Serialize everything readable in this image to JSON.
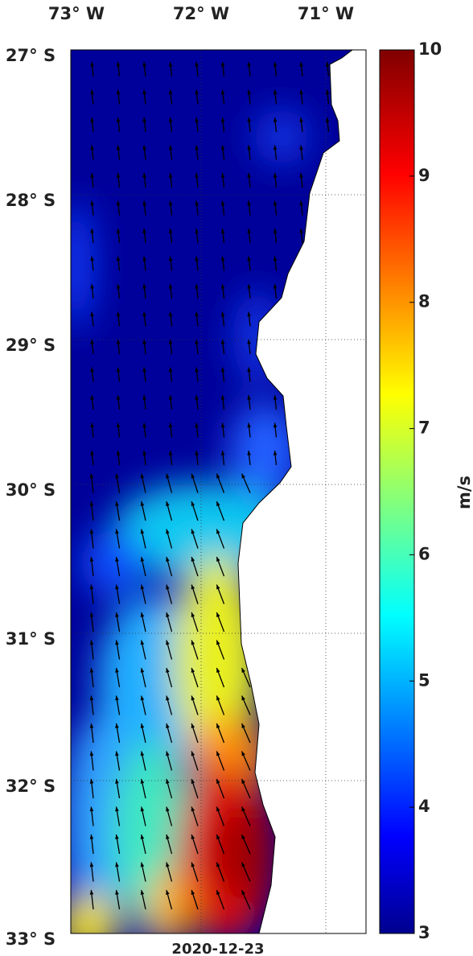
{
  "map": {
    "lon_labels": [
      "73° W",
      "72° W",
      "71° W"
    ],
    "lat_labels": [
      "27° S",
      "28° S",
      "29° S",
      "30° S",
      "31° S",
      "32° S",
      "33° S"
    ],
    "date": "2020-12-23",
    "colorbar": {
      "label": "m/s",
      "lim": [
        3,
        10
      ],
      "ticks": [
        3,
        4,
        5,
        6,
        7,
        8,
        9,
        10
      ]
    }
  }
}
